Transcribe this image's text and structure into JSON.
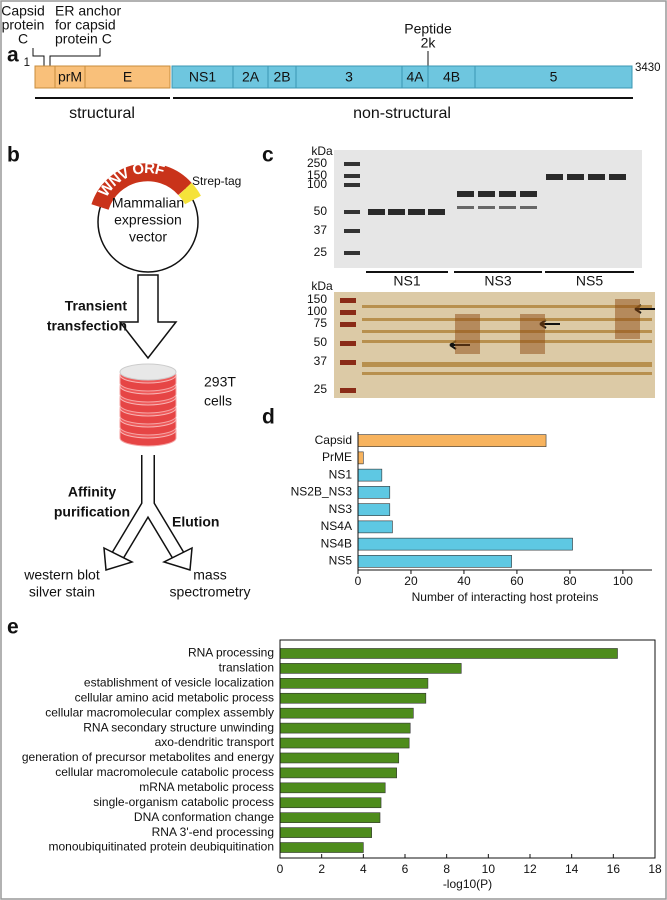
{
  "panel_labels": [
    "a",
    "b",
    "c",
    "d",
    "e"
  ],
  "genome": {
    "start": "1",
    "end": "3430",
    "segments": [
      "prM",
      "E",
      "NS1",
      "2A",
      "2B",
      "3",
      "4A",
      "4B",
      "5"
    ],
    "groups": [
      "structural",
      "non-structural"
    ],
    "capsid_label": [
      "Capsid",
      "protein",
      "C"
    ],
    "er_anchor_label": [
      "ER anchor",
      "for capsid",
      "protein C"
    ],
    "peptide_label": [
      "Peptide",
      "2k"
    ]
  },
  "workflow": {
    "orf": "WNV ORF",
    "tag": "Strep-tag",
    "vector": [
      "Mammalian",
      "expression",
      "vector"
    ],
    "step1": [
      "Transient",
      "transfection"
    ],
    "cells": [
      "293T",
      "cells"
    ],
    "step2": [
      "Affinity",
      "purification"
    ],
    "step3": "Elution",
    "out_left": [
      "western blot",
      "silver stain"
    ],
    "out_right": [
      "mass",
      "spectrometry"
    ]
  },
  "gel": {
    "unit": "kDa",
    "top_markers": [
      "250",
      "150",
      "100",
      "50",
      "37",
      "25"
    ],
    "bottom_markers": [
      "150",
      "100",
      "75",
      "50",
      "37",
      "25"
    ],
    "groups": [
      "NS1",
      "NS3",
      "NS5"
    ]
  },
  "chart_data": [
    {
      "type": "bar",
      "orientation": "horizontal",
      "categories": [
        "Capsid",
        "PrME",
        "NS1",
        "NS2B_NS3",
        "NS3",
        "NS4A",
        "NS4B",
        "NS5"
      ],
      "values": [
        71,
        2,
        9,
        12,
        12,
        13,
        81,
        58
      ],
      "colors": [
        "#f7b35e",
        "#f7b35e",
        "#5ec8e3",
        "#5ec8e3",
        "#5ec8e3",
        "#5ec8e3",
        "#5ec8e3",
        "#5ec8e3"
      ],
      "xlim": [
        0,
        111
      ],
      "xticks": [
        0,
        20,
        40,
        60,
        80,
        100
      ],
      "xlabel": "Number of interacting host proteins"
    },
    {
      "type": "bar",
      "orientation": "horizontal",
      "categories": [
        "RNA processing",
        "translation",
        "establishment of vesicle localization",
        "cellular amino acid metabolic process",
        "cellular macromolecular complex assembly",
        "RNA secondary structure unwinding",
        "axo-dendritic transport",
        "generation of precursor metabolites and energy",
        "cellular macromolecule catabolic process",
        "mRNA metabolic process",
        "single-organism catabolic process",
        "DNA conformation change",
        "RNA 3'-end processing",
        "monoubiquitinated protein deubiquitination"
      ],
      "values": [
        16.2,
        8.7,
        7.1,
        7.0,
        6.4,
        6.25,
        6.2,
        5.7,
        5.6,
        5.05,
        4.85,
        4.8,
        4.4,
        4.0
      ],
      "color": "#4e8c1c",
      "xlim": [
        0,
        18
      ],
      "xticks": [
        0,
        2,
        4,
        6,
        8,
        10,
        12,
        14,
        16,
        18
      ],
      "xlabel": "-log10(P)"
    }
  ]
}
